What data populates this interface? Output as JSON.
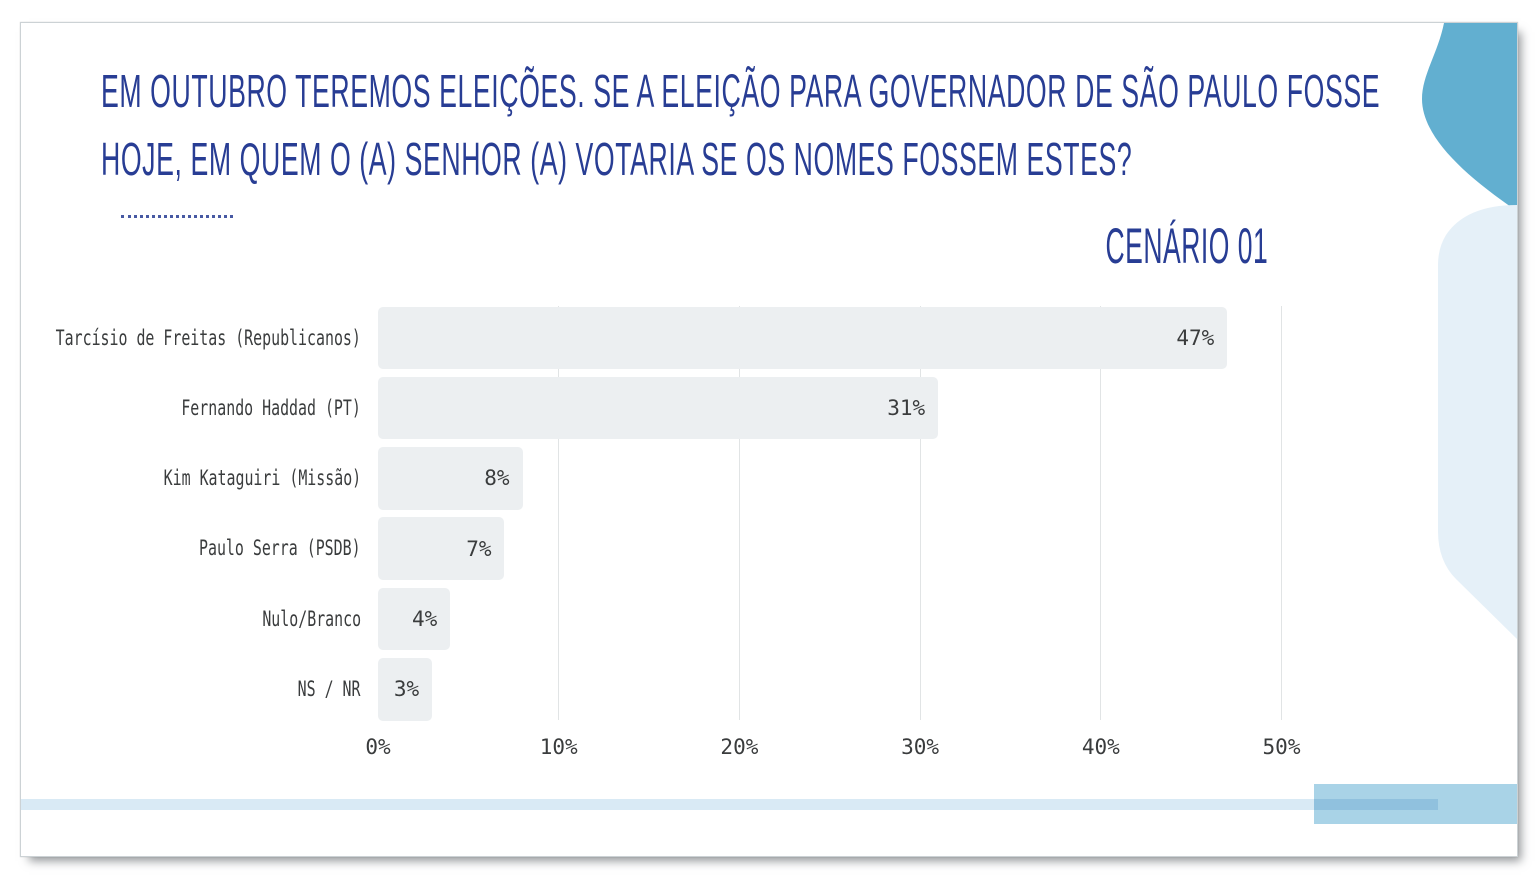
{
  "slide": {
    "title_lines": [
      "EM OUTUBRO TEREMOS ELEIÇÕES. SE A ELEIÇÃO PARA GOVERNADOR DE SÃO PAULO FOSSE",
      "HOJE, EM QUEM O (A) SENHOR (A) VOTARIA SE OS NOMES FOSSEM ESTES?"
    ],
    "scenario_label": "CENÁRIO 01"
  },
  "chart_data": {
    "type": "bar",
    "orientation": "horizontal",
    "title": "",
    "categories": [
      "Tarcísio de Freitas (Republicanos)",
      "Fernando Haddad (PT)",
      "Kim Kataguiri (Missão)",
      "Paulo Serra (PSDB)",
      "Nulo/Branco",
      "NS / NR"
    ],
    "values": [
      47,
      31,
      8,
      7,
      4,
      3
    ],
    "value_labels": [
      "47%",
      "31%",
      "8%",
      "7%",
      "4%",
      "3%"
    ],
    "x_ticks": [
      0,
      10,
      20,
      30,
      40,
      50
    ],
    "x_tick_labels": [
      "0%",
      "10%",
      "20%",
      "30%",
      "40%",
      "50%"
    ],
    "xlim": [
      0,
      50
    ],
    "xlabel": "",
    "ylabel": "",
    "grid": "vertical-only",
    "legend": false
  },
  "colors": {
    "title_blue": "#283D94",
    "accent_teal": "#62AFD0",
    "light_panel": "#E5F0F8",
    "bottom_band": "#D9EAF5",
    "bottom_rect": "#A9D3E7",
    "bar_fill": "#ECEFF1",
    "grid_line": "#E1E4E5",
    "chart_text": "#3A3C3D"
  }
}
